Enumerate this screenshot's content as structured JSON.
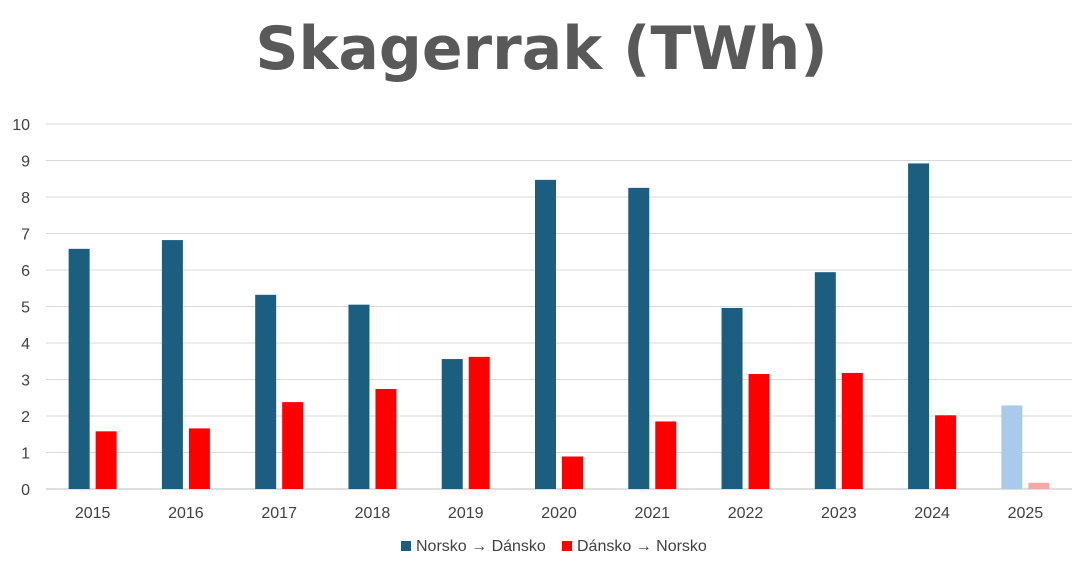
{
  "chart_data": {
    "type": "bar",
    "title": "Skagerrak (TWh)",
    "categories": [
      "2015",
      "2016",
      "2017",
      "2018",
      "2019",
      "2020",
      "2021",
      "2022",
      "2023",
      "2024",
      "2025"
    ],
    "series": [
      {
        "name": "Norsko → Dánsko",
        "color": "#1b5e80",
        "partial_color": "#a9cbe9",
        "values": [
          6.58,
          6.82,
          5.32,
          5.05,
          3.56,
          8.47,
          8.25,
          4.96,
          5.94,
          8.92,
          2.29
        ]
      },
      {
        "name": "Dánsko → Norsko",
        "color": "#ff0000",
        "partial_color": "#f4a8a8",
        "values": [
          1.58,
          1.66,
          2.38,
          2.74,
          3.62,
          0.89,
          1.85,
          3.15,
          3.18,
          2.02,
          0.17
        ]
      }
    ],
    "partial_categories": [
      "2025"
    ],
    "xlabel": "",
    "ylabel": "",
    "ylim": [
      0,
      10
    ],
    "yticks": [
      "0",
      "1",
      "2",
      "3",
      "4",
      "5",
      "6",
      "7",
      "8",
      "9",
      "10"
    ],
    "grid": true,
    "legend_position": "bottom"
  }
}
